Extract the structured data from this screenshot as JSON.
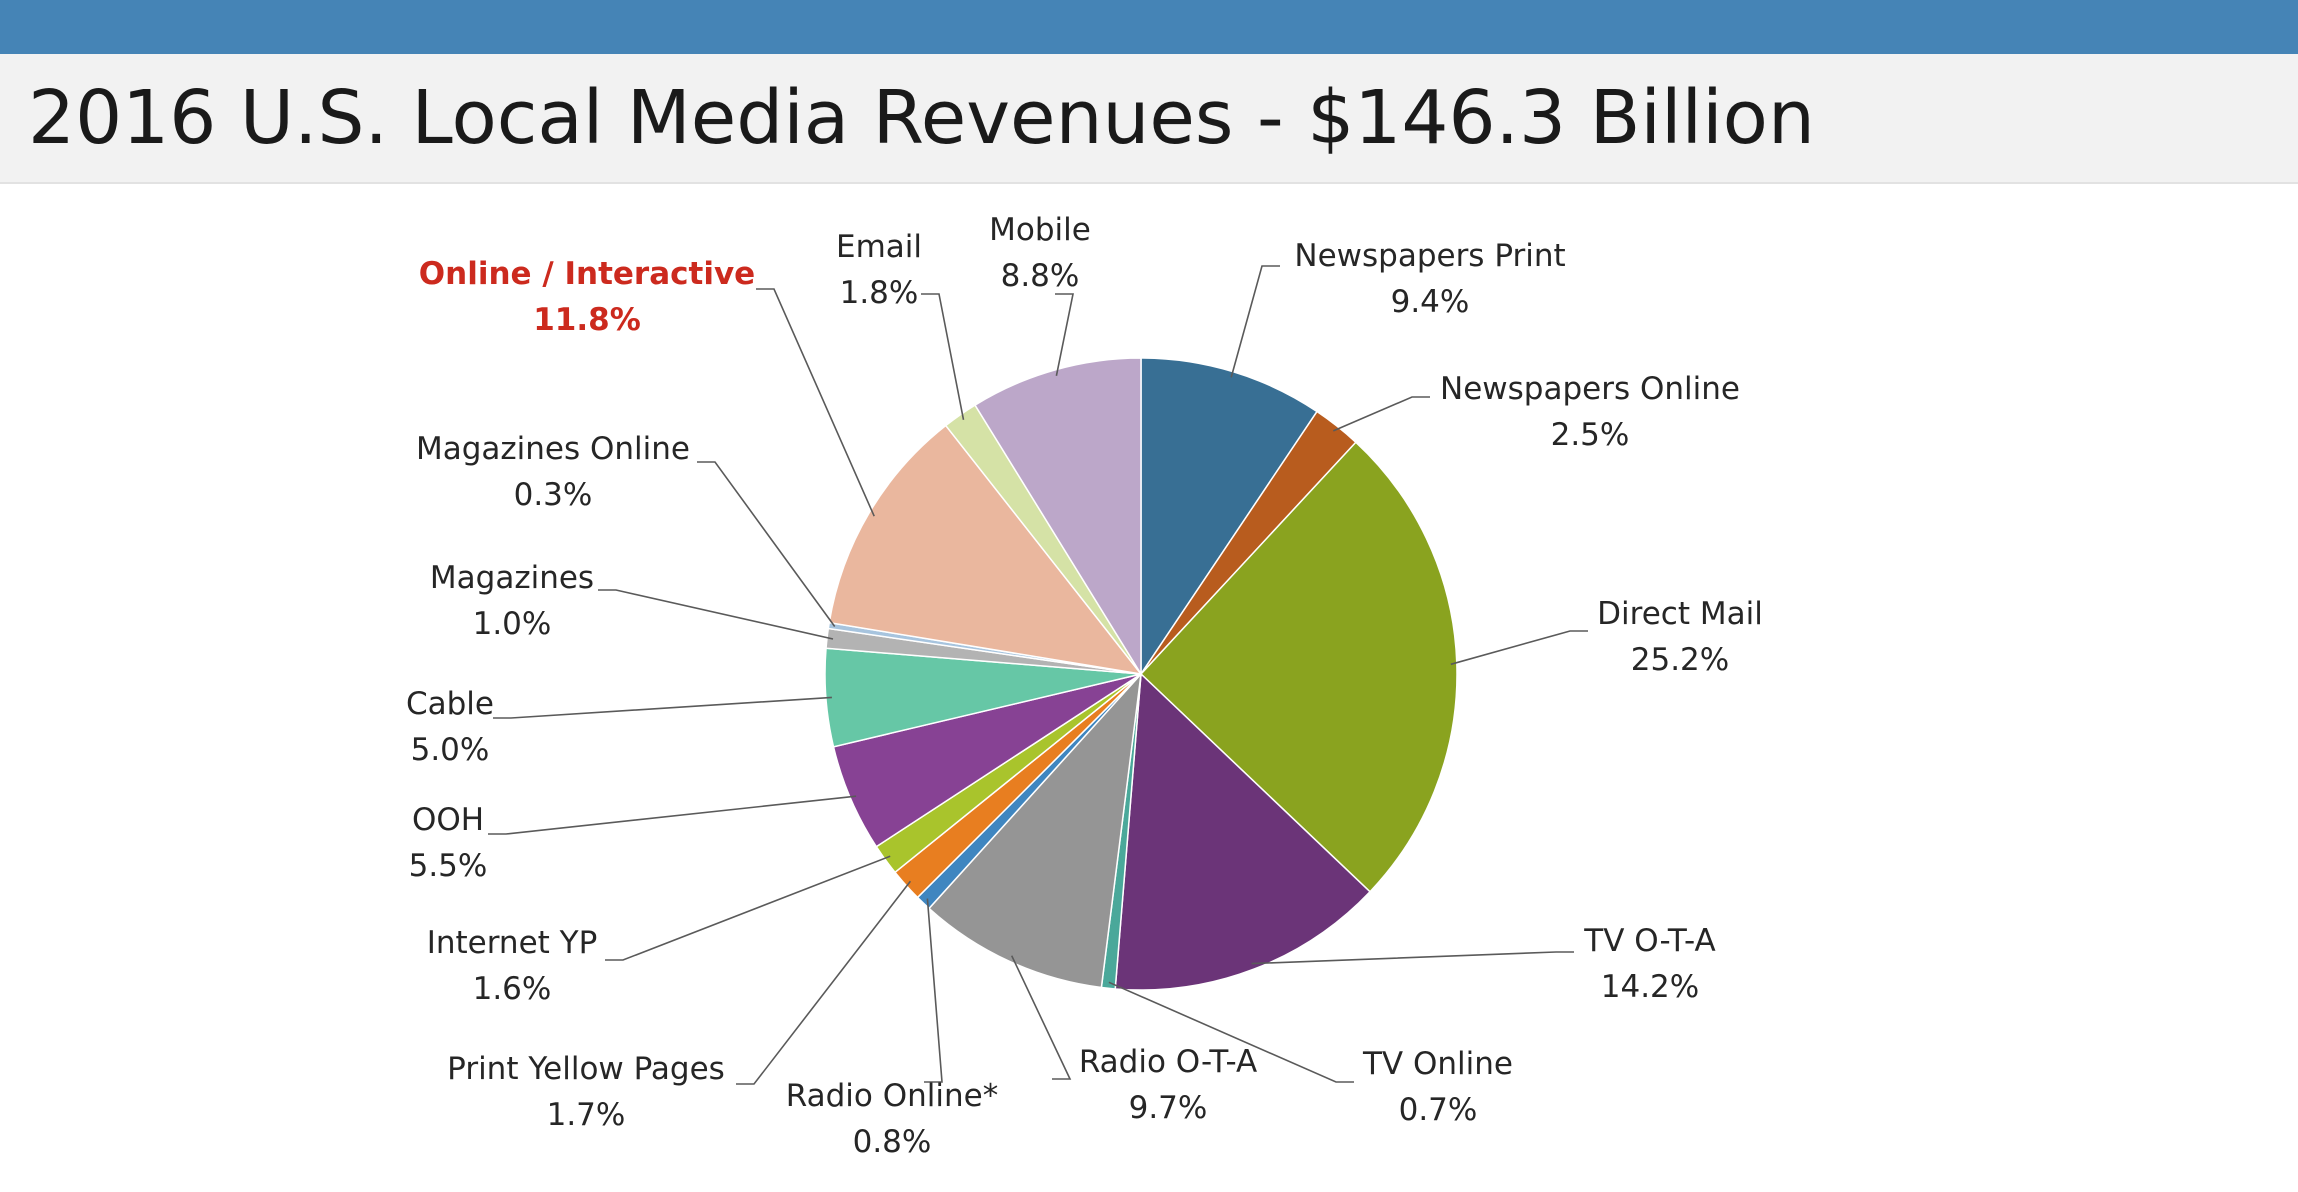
{
  "page": {
    "title": "2016 U.S. Local Media Revenues - $146.3 Billion"
  },
  "colors": {
    "top_bar": "#4584b6",
    "highlight_label": "#cc2a1e"
  },
  "chart_data": {
    "type": "pie",
    "title": "2016 U.S. Local Media Revenues - $146.3 Billion",
    "unit": "%",
    "start_angle_deg": 0,
    "direction": "clockwise",
    "slices": [
      {
        "label": "Newspapers Print",
        "value": 9.4,
        "value_label": "9.4%",
        "color": "#386f94"
      },
      {
        "label": "Newspapers Online",
        "value": 2.5,
        "value_label": "2.5%",
        "color": "#b85c1e"
      },
      {
        "label": "Direct Mail",
        "value": 25.2,
        "value_label": "25.2%",
        "color": "#8aa31f"
      },
      {
        "label": "TV O-T-A",
        "value": 14.2,
        "value_label": "14.2%",
        "color": "#6b3478"
      },
      {
        "label": "TV Online",
        "value": 0.7,
        "value_label": "0.7%",
        "color": "#4aa89a"
      },
      {
        "label": "Radio O-T-A",
        "value": 9.7,
        "value_label": "9.7%",
        "color": "#959595"
      },
      {
        "label": "Radio Online*",
        "value": 0.8,
        "value_label": "0.8%",
        "color": "#3f86c0"
      },
      {
        "label": "Print Yellow Pages",
        "value": 1.7,
        "value_label": "1.7%",
        "color": "#e87e20"
      },
      {
        "label": "Internet YP",
        "value": 1.6,
        "value_label": "1.6%",
        "color": "#a9c42c"
      },
      {
        "label": "OOH",
        "value": 5.5,
        "value_label": "5.5%",
        "color": "#874294"
      },
      {
        "label": "Cable",
        "value": 5.0,
        "value_label": "5.0%",
        "color": "#66c7a6"
      },
      {
        "label": "Magazines",
        "value": 1.0,
        "value_label": "1.0%",
        "color": "#b3b3b3"
      },
      {
        "label": "Magazines Online",
        "value": 0.3,
        "value_label": "0.3%",
        "color": "#a7c4de"
      },
      {
        "label": "Online / Interactive",
        "value": 11.8,
        "value_label": "11.8%",
        "color": "#eab79e",
        "highlight": true
      },
      {
        "label": "Email",
        "value": 1.8,
        "value_label": "1.8%",
        "color": "#d5e2a6"
      },
      {
        "label": "Mobile",
        "value": 8.8,
        "value_label": "8.8%",
        "color": "#bca7c9"
      }
    ],
    "legend": "none",
    "data_labels": "outside-with-leader-lines"
  }
}
